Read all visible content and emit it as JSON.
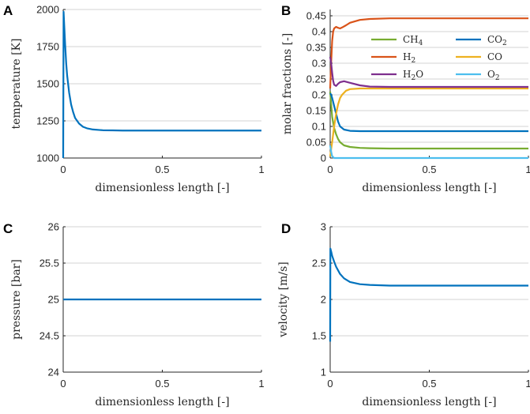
{
  "chart_data": [
    {
      "panel": "A",
      "type": "line",
      "xlabel": "dimensionless length [-]",
      "ylabel": "temperature [K]",
      "xlim": [
        0,
        1
      ],
      "ylim": [
        1000,
        2000
      ],
      "xticks": [
        0,
        0.5,
        1
      ],
      "xticklabels": [
        "0",
        "0.5",
        "1"
      ],
      "yticks": [
        1000,
        1250,
        1500,
        1750,
        2000
      ],
      "yticklabels": [
        "1000",
        "1250",
        "1500",
        "1750",
        "2000"
      ],
      "grid": true,
      "series": [
        {
          "name": "temperature",
          "color": "#0072BD",
          "x": [
            0,
            0.002,
            0.005,
            0.01,
            0.015,
            0.02,
            0.03,
            0.04,
            0.05,
            0.06,
            0.08,
            0.1,
            0.12,
            0.15,
            0.2,
            0.25,
            0.3,
            0.4,
            0.5,
            0.7,
            1.0
          ],
          "y": [
            1000,
            1985,
            1900,
            1760,
            1640,
            1555,
            1440,
            1360,
            1310,
            1270,
            1232,
            1210,
            1200,
            1192,
            1187,
            1186,
            1185,
            1185,
            1185,
            1185,
            1185
          ]
        }
      ]
    },
    {
      "panel": "B",
      "type": "line",
      "xlabel": "dimensionless length [-]",
      "ylabel": "molar fractions [-]",
      "xlim": [
        0,
        1
      ],
      "ylim": [
        0,
        0.47
      ],
      "xticks": [
        0,
        0.5,
        1
      ],
      "xticklabels": [
        "0",
        "0.5",
        "1"
      ],
      "yticks": [
        0,
        0.05,
        0.1,
        0.15,
        0.2,
        0.25,
        0.3,
        0.35,
        0.4,
        0.45
      ],
      "yticklabels": [
        "0",
        "0.05",
        "0.1",
        "0.15",
        "0.2",
        "0.25",
        "0.3",
        "0.35",
        "0.4",
        "0.45"
      ],
      "grid": true,
      "legend": {
        "placement": "upper-middle",
        "columns": 2,
        "labels": [
          {
            "base": "CH",
            "sub": "4"
          },
          {
            "base": "CO",
            "sub": "2"
          },
          {
            "base": "H",
            "sub": "2"
          },
          {
            "base": "CO",
            "sub": ""
          },
          {
            "base": "H",
            "sub": "2",
            "tail": "O"
          },
          {
            "base": "O",
            "sub": "2"
          }
        ]
      },
      "series": [
        {
          "name": "CH4",
          "color": "#77AC30",
          "x": [
            0,
            0.005,
            0.01,
            0.02,
            0.03,
            0.04,
            0.05,
            0.07,
            0.1,
            0.15,
            0.2,
            0.3,
            0.5,
            1.0
          ],
          "y": [
            0.21,
            0.17,
            0.13,
            0.095,
            0.075,
            0.06,
            0.05,
            0.04,
            0.035,
            0.032,
            0.031,
            0.03,
            0.03,
            0.03
          ]
        },
        {
          "name": "CO2",
          "color": "#0072BD",
          "x": [
            0,
            0.005,
            0.01,
            0.02,
            0.03,
            0.04,
            0.05,
            0.07,
            0.1,
            0.15,
            0.2,
            0.3,
            0.5,
            1.0
          ],
          "y": [
            0.205,
            0.2,
            0.19,
            0.165,
            0.14,
            0.115,
            0.1,
            0.09,
            0.086,
            0.085,
            0.085,
            0.085,
            0.085,
            0.085
          ]
        },
        {
          "name": "H2",
          "color": "#D95319",
          "x": [
            0,
            0.005,
            0.01,
            0.015,
            0.02,
            0.03,
            0.04,
            0.05,
            0.06,
            0.08,
            0.1,
            0.15,
            0.2,
            0.3,
            0.5,
            1.0
          ],
          "y": [
            0.22,
            0.3,
            0.37,
            0.4,
            0.41,
            0.415,
            0.412,
            0.41,
            0.413,
            0.42,
            0.428,
            0.437,
            0.44,
            0.442,
            0.442,
            0.442
          ]
        },
        {
          "name": "CO",
          "color": "#EDB120",
          "x": [
            0,
            0.01,
            0.02,
            0.03,
            0.04,
            0.05,
            0.06,
            0.08,
            0.1,
            0.15,
            0.2,
            0.3,
            0.5,
            1.0
          ],
          "y": [
            0.005,
            0.05,
            0.1,
            0.14,
            0.17,
            0.19,
            0.2,
            0.213,
            0.218,
            0.22,
            0.22,
            0.22,
            0.22,
            0.22
          ]
        },
        {
          "name": "H2O",
          "color": "#7E2F8E",
          "x": [
            0,
            0.005,
            0.01,
            0.015,
            0.02,
            0.03,
            0.04,
            0.05,
            0.07,
            0.1,
            0.15,
            0.2,
            0.3,
            0.5,
            1.0
          ],
          "y": [
            0.32,
            0.3,
            0.27,
            0.245,
            0.232,
            0.228,
            0.235,
            0.24,
            0.243,
            0.238,
            0.23,
            0.226,
            0.225,
            0.225,
            0.225
          ]
        },
        {
          "name": "O2",
          "color": "#4DBEEE",
          "x": [
            0,
            0.005,
            0.01,
            0.02,
            0.05,
            0.1,
            0.5,
            1.0
          ],
          "y": [
            0.04,
            0.02,
            0.006,
            0.0,
            0.0,
            0.0,
            0.0,
            0.0
          ]
        }
      ]
    },
    {
      "panel": "C",
      "type": "line",
      "xlabel": "dimensionless length [-]",
      "ylabel": "pressure [bar]",
      "xlim": [
        0,
        1
      ],
      "ylim": [
        24,
        26
      ],
      "xticks": [
        0,
        0.5,
        1
      ],
      "xticklabels": [
        "0",
        "0.5",
        "1"
      ],
      "yticks": [
        24,
        24.5,
        25,
        25.5,
        26
      ],
      "yticklabels": [
        "24",
        "24.5",
        "25",
        "25.5",
        "26"
      ],
      "grid": true,
      "series": [
        {
          "name": "pressure",
          "color": "#0072BD",
          "x": [
            0,
            0.25,
            0.5,
            0.75,
            1.0
          ],
          "y": [
            25.0,
            25.0,
            25.0,
            25.0,
            25.0
          ]
        }
      ]
    },
    {
      "panel": "D",
      "type": "line",
      "xlabel": "dimensionless length [-]",
      "ylabel": "velocity [m/s]",
      "xlim": [
        0,
        1
      ],
      "ylim": [
        1,
        3
      ],
      "xticks": [
        0,
        0.5,
        1
      ],
      "xticklabels": [
        "0",
        "0.5",
        "1"
      ],
      "yticks": [
        1,
        1.5,
        2,
        2.5,
        3
      ],
      "yticklabels": [
        "1",
        "1.5",
        "2",
        "2.5",
        "3"
      ],
      "grid": true,
      "series": [
        {
          "name": "velocity",
          "color": "#0072BD",
          "x": [
            0,
            0.001,
            0.005,
            0.01,
            0.02,
            0.03,
            0.05,
            0.07,
            0.1,
            0.15,
            0.2,
            0.3,
            0.5,
            1.0
          ],
          "y": [
            1.42,
            2.7,
            2.66,
            2.6,
            2.52,
            2.45,
            2.35,
            2.29,
            2.24,
            2.21,
            2.2,
            2.19,
            2.19,
            2.19
          ]
        }
      ]
    }
  ]
}
